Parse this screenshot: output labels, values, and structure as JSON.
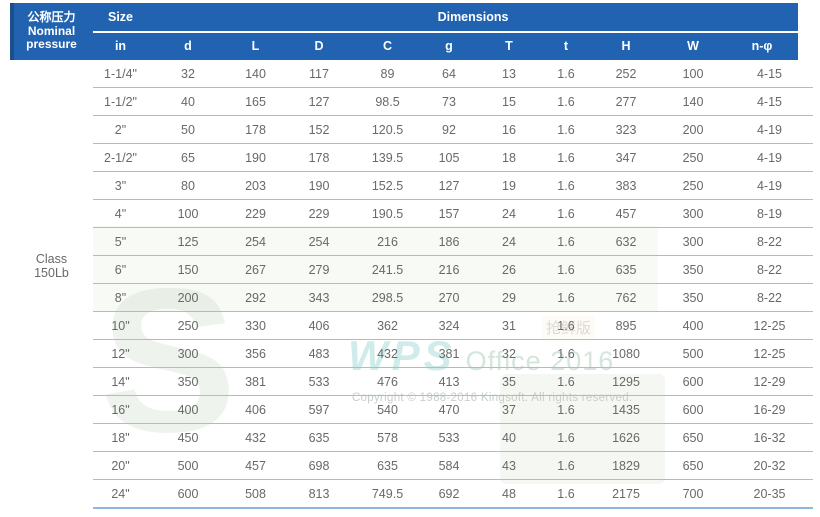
{
  "chart_data": {
    "type": "table",
    "corner_label": "公称压力 Nominal pressure",
    "size_header": "Size",
    "dimensions_header": "Dimensions",
    "row_group_label": "Class 150Lb",
    "columns": [
      "in",
      "d",
      "L",
      "D",
      "C",
      "g",
      "T",
      "t",
      "H",
      "W",
      "n-φ"
    ],
    "rows": [
      [
        "1-1/4\"",
        "32",
        "140",
        "117",
        "89",
        "64",
        "13",
        "1.6",
        "252",
        "100",
        "4-15"
      ],
      [
        "1-1/2\"",
        "40",
        "165",
        "127",
        "98.5",
        "73",
        "15",
        "1.6",
        "277",
        "140",
        "4-15"
      ],
      [
        "2\"",
        "50",
        "178",
        "152",
        "120.5",
        "92",
        "16",
        "1.6",
        "323",
        "200",
        "4-19"
      ],
      [
        "2-1/2\"",
        "65",
        "190",
        "178",
        "139.5",
        "105",
        "18",
        "1.6",
        "347",
        "250",
        "4-19"
      ],
      [
        "3\"",
        "80",
        "203",
        "190",
        "152.5",
        "127",
        "19",
        "1.6",
        "383",
        "250",
        "4-19"
      ],
      [
        "4\"",
        "100",
        "229",
        "229",
        "190.5",
        "157",
        "24",
        "1.6",
        "457",
        "300",
        "8-19"
      ],
      [
        "5\"",
        "125",
        "254",
        "254",
        "216",
        "186",
        "24",
        "1.6",
        "632",
        "300",
        "8-22"
      ],
      [
        "6\"",
        "150",
        "267",
        "279",
        "241.5",
        "216",
        "26",
        "1.6",
        "635",
        "350",
        "8-22"
      ],
      [
        "8\"",
        "200",
        "292",
        "343",
        "298.5",
        "270",
        "29",
        "1.6",
        "762",
        "350",
        "8-22"
      ],
      [
        "10\"",
        "250",
        "330",
        "406",
        "362",
        "324",
        "31",
        "1.6",
        "895",
        "400",
        "12-25"
      ],
      [
        "12\"",
        "300",
        "356",
        "483",
        "432",
        "381",
        "32",
        "1.6",
        "1080",
        "500",
        "12-25"
      ],
      [
        "14\"",
        "350",
        "381",
        "533",
        "476",
        "413",
        "35",
        "1.6",
        "1295",
        "600",
        "12-29"
      ],
      [
        "16\"",
        "400",
        "406",
        "597",
        "540",
        "470",
        "37",
        "1.6",
        "1435",
        "600",
        "16-29"
      ],
      [
        "18\"",
        "450",
        "432",
        "635",
        "578",
        "533",
        "40",
        "1.6",
        "1626",
        "650",
        "16-32"
      ],
      [
        "20\"",
        "500",
        "457",
        "698",
        "635",
        "584",
        "43",
        "1.6",
        "1829",
        "650",
        "20-32"
      ],
      [
        "24\"",
        "600",
        "508",
        "813",
        "749.5",
        "692",
        "48",
        "1.6",
        "2175",
        "700",
        "20-35"
      ]
    ]
  },
  "header": {
    "pressure_zh": "公称压力",
    "pressure_en1": "Nominal",
    "pressure_en2": "pressure",
    "size": "Size",
    "dimensions": "Dimensions"
  },
  "row_group": {
    "line1": "Class",
    "line2": "150Lb"
  },
  "watermark": {
    "letter": "S",
    "logo": "WPS",
    "product": "Office 2016",
    "badge": "抢鲜版",
    "copyright": "Copyright © 1988-2016 Kingsoft. All rights reserved."
  },
  "colors": {
    "header_blue": "#2163b0",
    "header_edge_blue": "#1b4f8c",
    "row_line_blue": "#9dbfe2",
    "bottom_line_blue": "#8fb6de",
    "body_text_gray": "#696969"
  }
}
